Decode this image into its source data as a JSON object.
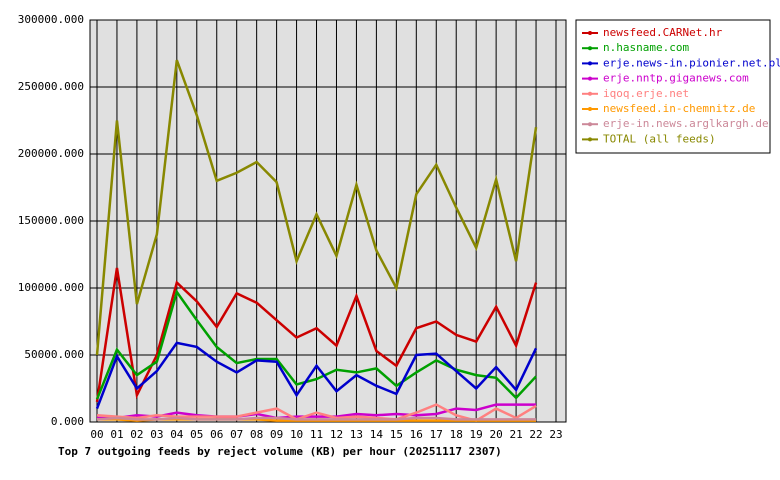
{
  "chart_data": {
    "type": "line",
    "title": "Top 7 outgoing feeds by reject volume (KB) per hour (20251117 2307)",
    "categories": [
      "00",
      "01",
      "02",
      "03",
      "04",
      "05",
      "06",
      "07",
      "08",
      "09",
      "10",
      "11",
      "12",
      "13",
      "14",
      "15",
      "16",
      "17",
      "18",
      "19",
      "20",
      "21",
      "22",
      "23"
    ],
    "series": [
      {
        "name": "newsfeed.CARNet.hr",
        "color": "#cc0000",
        "values": [
          15000,
          115000,
          20000,
          50000,
          104000,
          90000,
          71000,
          96000,
          89000,
          76000,
          63000,
          70000,
          57000,
          94000,
          53000,
          42000,
          70000,
          75000,
          65000,
          60000,
          86000,
          57000,
          104000,
          null
        ]
      },
      {
        "name": "n.hasname.com",
        "color": "#00a000",
        "values": [
          17000,
          54000,
          35000,
          45000,
          97000,
          76000,
          56000,
          44000,
          47000,
          47000,
          28000,
          32000,
          39000,
          37000,
          40000,
          27000,
          37000,
          46000,
          39000,
          35000,
          33000,
          18000,
          34000,
          null
        ]
      },
      {
        "name": "erje.news-in.pionier.net.pl",
        "color": "#0000cc",
        "values": [
          10000,
          49000,
          25000,
          38000,
          59000,
          56000,
          45000,
          37000,
          46000,
          45000,
          20000,
          42000,
          23000,
          35000,
          27000,
          21000,
          50000,
          51000,
          38000,
          25000,
          41000,
          24000,
          55000,
          null
        ]
      },
      {
        "name": "erje.nntp.giganews.com",
        "color": "#cc00cc",
        "values": [
          3000,
          3000,
          5000,
          4000,
          7000,
          5000,
          4000,
          4000,
          6000,
          3000,
          4000,
          4000,
          4000,
          6000,
          5000,
          6000,
          5000,
          6000,
          10000,
          9000,
          13000,
          13000,
          13000,
          null
        ]
      },
      {
        "name": "iqoq.erje.net",
        "color": "#ff8080",
        "values": [
          5000,
          4000,
          3000,
          5000,
          4000,
          4000,
          4000,
          4000,
          7000,
          10000,
          2000,
          7000,
          3000,
          4000,
          3000,
          2000,
          7000,
          13000,
          5000,
          1000,
          10000,
          3000,
          12000,
          null
        ]
      },
      {
        "name": "newsfeed.in-chemnitz.de",
        "color": "#ff9900",
        "values": [
          2000,
          2000,
          1000,
          2000,
          2000,
          2000,
          2000,
          2000,
          2000,
          1000,
          1000,
          1000,
          1000,
          1000,
          1000,
          1000,
          1000,
          1000,
          1000,
          1000,
          1000,
          1000,
          1000,
          null
        ]
      },
      {
        "name": "erje-in.news.arglkargh.de",
        "color": "#cc8899",
        "values": [
          2000,
          3000,
          2000,
          2000,
          3000,
          2000,
          2000,
          2000,
          3000,
          3000,
          2000,
          2000,
          2000,
          2000,
          2000,
          2000,
          3000,
          3000,
          2000,
          2000,
          2000,
          2000,
          2000,
          null
        ]
      },
      {
        "name": "TOTAL (all feeds)",
        "color": "#888800",
        "values": [
          50000,
          225000,
          88000,
          140000,
          270000,
          229000,
          180000,
          186000,
          194000,
          179000,
          120000,
          155000,
          124000,
          177000,
          128000,
          100000,
          170000,
          192000,
          160000,
          130000,
          181000,
          120000,
          220000,
          null
        ]
      }
    ],
    "ylim": [
      0,
      300000
    ],
    "yticks": [
      {
        "value": 0,
        "label": "0.000"
      },
      {
        "value": 50000,
        "label": "50000.000"
      },
      {
        "value": 100000,
        "label": "100000.000"
      },
      {
        "value": 150000,
        "label": "150000.000"
      },
      {
        "value": 200000,
        "label": "200000.000"
      },
      {
        "value": 250000,
        "label": "250000.000"
      },
      {
        "value": 300000,
        "label": "300000.000"
      }
    ],
    "grid": true
  }
}
